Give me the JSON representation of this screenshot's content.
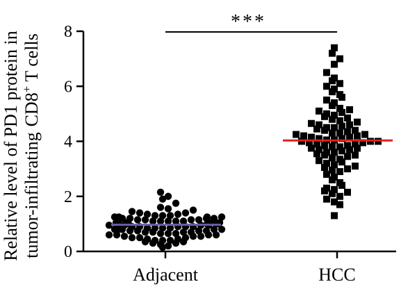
{
  "chart_data": {
    "type": "scatter",
    "subtype": "dot-plot with mean line",
    "ylabel_line1": "Relative level of PD1 protein in",
    "ylabel_line2": "tumor-infiltrating",
    "ylabel_line2_suffix": "CD8",
    "ylabel_superscript": "+",
    "ylabel_tail": "T cells",
    "ylim": [
      0,
      8
    ],
    "yticks": [
      "0",
      "2",
      "4",
      "6",
      "8"
    ],
    "categories": [
      "Adjacent",
      "HCC"
    ],
    "significance": "***",
    "series": [
      {
        "category": "Adjacent",
        "marker": "circle",
        "color": "#000000",
        "mean": 0.97,
        "mean_color": "#6a5fa8",
        "values": [
          0.15,
          0.2,
          0.25,
          0.3,
          0.3,
          0.35,
          0.35,
          0.4,
          0.4,
          0.4,
          0.45,
          0.45,
          0.5,
          0.5,
          0.5,
          0.55,
          0.55,
          0.55,
          0.6,
          0.6,
          0.6,
          0.6,
          0.65,
          0.65,
          0.65,
          0.7,
          0.7,
          0.7,
          0.7,
          0.75,
          0.75,
          0.75,
          0.75,
          0.8,
          0.8,
          0.8,
          0.8,
          0.8,
          0.85,
          0.85,
          0.85,
          0.85,
          0.9,
          0.9,
          0.9,
          0.9,
          0.9,
          0.95,
          0.95,
          0.95,
          0.95,
          0.95,
          1.0,
          1.0,
          1.0,
          1.0,
          1.0,
          1.0,
          1.05,
          1.05,
          1.05,
          1.05,
          1.05,
          1.1,
          1.1,
          1.1,
          1.1,
          1.1,
          1.15,
          1.15,
          1.15,
          1.15,
          1.2,
          1.2,
          1.2,
          1.2,
          1.25,
          1.25,
          1.25,
          1.25,
          1.3,
          1.3,
          1.3,
          1.35,
          1.35,
          1.4,
          1.4,
          1.45,
          1.5,
          1.55,
          1.6,
          1.75,
          1.9,
          2.0,
          2.15
        ]
      },
      {
        "category": "HCC",
        "marker": "square",
        "color": "#000000",
        "mean": 4.03,
        "mean_color": "#e0201b",
        "values": [
          1.3,
          1.7,
          1.8,
          1.9,
          2.0,
          2.1,
          2.15,
          2.2,
          2.25,
          2.3,
          2.4,
          2.5,
          2.6,
          2.7,
          2.8,
          2.9,
          2.95,
          3.0,
          3.05,
          3.1,
          3.15,
          3.2,
          3.25,
          3.3,
          3.35,
          3.4,
          3.45,
          3.5,
          3.5,
          3.55,
          3.6,
          3.6,
          3.65,
          3.7,
          3.7,
          3.75,
          3.75,
          3.8,
          3.8,
          3.85,
          3.85,
          3.9,
          3.9,
          3.95,
          3.95,
          4.0,
          4.0,
          4.0,
          4.05,
          4.05,
          4.1,
          4.1,
          4.15,
          4.15,
          4.2,
          4.2,
          4.25,
          4.25,
          4.3,
          4.3,
          4.35,
          4.4,
          4.4,
          4.45,
          4.5,
          4.5,
          4.55,
          4.6,
          4.6,
          4.65,
          4.7,
          4.75,
          4.8,
          4.85,
          4.9,
          4.95,
          5.0,
          5.05,
          5.1,
          5.15,
          5.2,
          5.3,
          5.4,
          5.5,
          5.6,
          5.7,
          5.8,
          5.9,
          6.0,
          6.1,
          6.2,
          6.3,
          6.5,
          6.8,
          7.0,
          7.2,
          7.4
        ]
      }
    ],
    "grid": false,
    "legend": "none"
  }
}
